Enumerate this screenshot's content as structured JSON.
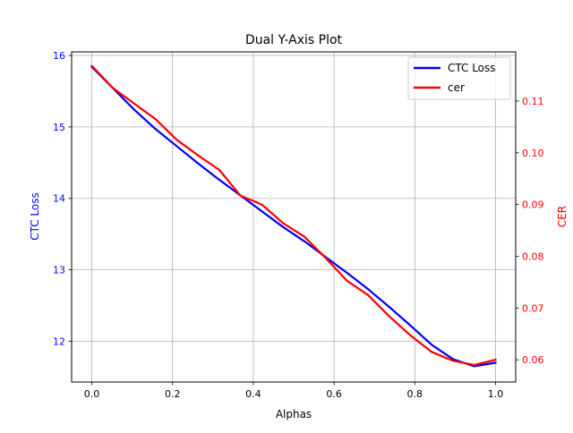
{
  "chart_data": {
    "type": "line",
    "title": "Dual Y-Axis Plot",
    "xlabel": "Alphas",
    "ylabel_left": "CTC Loss",
    "ylabel_right": "CER",
    "xlim": [
      -0.05,
      1.05
    ],
    "ylim_left": [
      11.43,
      16.05
    ],
    "ylim_right": [
      0.0557,
      0.1195
    ],
    "x_ticks": [
      0.0,
      0.2,
      0.4,
      0.6,
      0.8,
      1.0
    ],
    "x_tick_labels": [
      "0.0",
      "0.2",
      "0.4",
      "0.6",
      "0.8",
      "1.0"
    ],
    "y_left_ticks": [
      12,
      13,
      14,
      15,
      16
    ],
    "y_left_tick_labels": [
      "12",
      "13",
      "14",
      "15",
      "16"
    ],
    "y_right_ticks": [
      0.06,
      0.07,
      0.08,
      0.09,
      0.1,
      0.11
    ],
    "y_right_tick_labels": [
      "0.06",
      "0.07",
      "0.08",
      "0.09",
      "0.10",
      "0.11"
    ],
    "grid": true,
    "legend_position": "top-right",
    "x": [
      0.0,
      0.0526,
      0.1053,
      0.1579,
      0.2105,
      0.2632,
      0.3158,
      0.3684,
      0.4211,
      0.4737,
      0.5263,
      0.5789,
      0.6316,
      0.6842,
      0.7368,
      0.7895,
      0.8421,
      0.8947,
      0.9474,
      1.0
    ],
    "series": [
      {
        "name": "CTC Loss",
        "axis": "left",
        "color": "#0000ff",
        "values": [
          15.84,
          15.54,
          15.24,
          14.97,
          14.73,
          14.49,
          14.26,
          14.04,
          13.82,
          13.6,
          13.4,
          13.18,
          12.96,
          12.73,
          12.48,
          12.22,
          11.95,
          11.75,
          11.65,
          11.7
        ]
      },
      {
        "name": "cer",
        "axis": "right",
        "color": "#ff0000",
        "values": [
          0.1168,
          0.1125,
          0.1095,
          0.1065,
          0.1025,
          0.0995,
          0.0967,
          0.0917,
          0.09,
          0.0864,
          0.0838,
          0.0797,
          0.0753,
          0.0725,
          0.0684,
          0.0647,
          0.0615,
          0.0598,
          0.059,
          0.06
        ]
      }
    ]
  }
}
